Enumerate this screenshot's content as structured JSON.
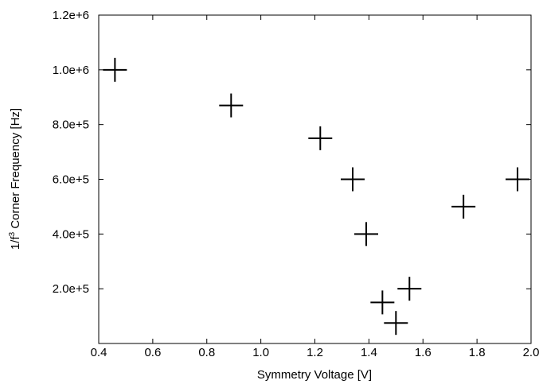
{
  "chart_data": {
    "type": "scatter",
    "title": "",
    "xlabel": "Symmetry Voltage [V]",
    "ylabel_main": "1/f",
    "ylabel_sup": "3",
    "ylabel_rest": " Corner Frequency [Hz]",
    "xlim": [
      0.4,
      2.0
    ],
    "ylim": [
      0,
      1200000
    ],
    "x_ticks": [
      0.4,
      0.6,
      0.8,
      1.0,
      1.2,
      1.4,
      1.6,
      1.8,
      2.0
    ],
    "x_tick_labels": [
      "0.4",
      "0.6",
      "0.8",
      "1.0",
      "1.2",
      "1.4",
      "1.6",
      "1.8",
      "2.0"
    ],
    "y_ticks": [
      200000,
      400000,
      600000,
      800000,
      1000000,
      1200000
    ],
    "y_tick_labels": [
      "2.0e+5",
      "4.0e+5",
      "6.0e+5",
      "8.0e+5",
      "1.0e+6",
      "1.2e+6"
    ],
    "marker": "plus",
    "grid": false,
    "points": [
      {
        "x": 0.46,
        "y": 1000000
      },
      {
        "x": 0.89,
        "y": 870000
      },
      {
        "x": 1.22,
        "y": 750000
      },
      {
        "x": 1.34,
        "y": 600000
      },
      {
        "x": 1.39,
        "y": 400000
      },
      {
        "x": 1.45,
        "y": 150000
      },
      {
        "x": 1.5,
        "y": 75000
      },
      {
        "x": 1.55,
        "y": 200000
      },
      {
        "x": 1.75,
        "y": 500000
      },
      {
        "x": 1.95,
        "y": 600000
      }
    ]
  }
}
